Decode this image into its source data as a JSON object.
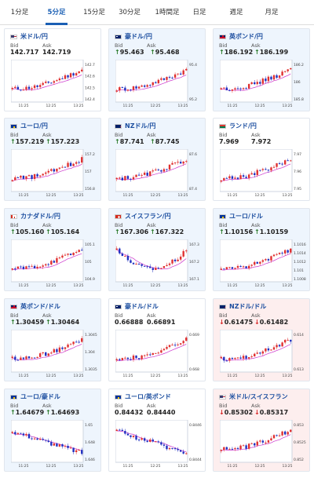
{
  "tabs": [
    "1分足",
    "5分足",
    "15分足",
    "30分足",
    "1時間足",
    "日足",
    "週足",
    "月足"
  ],
  "active_tab": "5分足",
  "labels": {
    "bid": "Bid",
    "ask": "Ask"
  },
  "colors": {
    "up_arrow": "#2a7a2a",
    "down_arrow": "#d62020",
    "candle_up": "#e03030",
    "candle_down": "#2030c0",
    "ma": "#cc33cc",
    "accent": "#1a5fb4"
  },
  "cards": [
    {
      "name": "米ドル/円",
      "flag": "us",
      "dir": "",
      "bid": "142.717",
      "ask": "142.719",
      "chart_data": {
        "type": "candlestick",
        "xticks": [
          "11:25",
          "12:25",
          "13:25"
        ],
        "yticks": [
          "142.7",
          "142.6",
          "142.5",
          "142.4"
        ],
        "trend": "up"
      }
    },
    {
      "name": "豪ドル/円",
      "flag": "au",
      "dir": "up",
      "bid": "95.463",
      "ask": "95.468",
      "chart_data": {
        "type": "candlestick",
        "xticks": [
          "11:25",
          "12:25",
          "13:25"
        ],
        "yticks": [
          "95.4",
          "95.2"
        ],
        "trend": "up"
      }
    },
    {
      "name": "英ポンド/円",
      "flag": "gb",
      "dir": "up",
      "bid": "186.192",
      "ask": "186.199",
      "chart_data": {
        "type": "candlestick",
        "xticks": [
          "11:25",
          "12:25",
          "13:25"
        ],
        "yticks": [
          "186.2",
          "186",
          "185.8"
        ],
        "trend": "up"
      }
    },
    {
      "name": "ユーロ/円",
      "flag": "eu",
      "dir": "up",
      "bid": "157.219",
      "ask": "157.223",
      "chart_data": {
        "type": "candlestick",
        "xticks": [
          "11:25",
          "12:25",
          "13:25"
        ],
        "yticks": [
          "157.2",
          "157",
          "156.8"
        ],
        "trend": "up"
      }
    },
    {
      "name": "NZドル/円",
      "flag": "nz",
      "dir": "up",
      "bid": "87.741",
      "ask": "87.745",
      "chart_data": {
        "type": "candlestick",
        "xticks": [
          "11:25",
          "12:25",
          "13:25"
        ],
        "yticks": [
          "87.6",
          "87.4"
        ],
        "trend": "up"
      }
    },
    {
      "name": "ランド/円",
      "flag": "za",
      "dir": "",
      "bid": "7.969",
      "ask": "7.972",
      "chart_data": {
        "type": "candlestick",
        "xticks": [
          "11:25",
          "12:25",
          "13:25"
        ],
        "yticks": [
          "7.97",
          "7.96",
          "7.95"
        ],
        "trend": "up"
      }
    },
    {
      "name": "カナダドル/円",
      "flag": "ca",
      "dir": "up",
      "bid": "105.160",
      "ask": "105.164",
      "chart_data": {
        "type": "candlestick",
        "xticks": [
          "11:25",
          "12:25",
          "13:25"
        ],
        "yticks": [
          "105.1",
          "105",
          "104.9"
        ],
        "trend": "up"
      }
    },
    {
      "name": "スイスフラン/円",
      "flag": "ch",
      "dir": "up",
      "bid": "167.306",
      "ask": "167.322",
      "chart_data": {
        "type": "candlestick",
        "xticks": [
          "11:25",
          "12:25",
          "13:25"
        ],
        "yticks": [
          "167.3",
          "167.2",
          "167.1"
        ],
        "trend": "vshape"
      }
    },
    {
      "name": "ユーロ/ドル",
      "flag": "eu",
      "dir": "up",
      "bid": "1.10156",
      "ask": "1.10159",
      "chart_data": {
        "type": "candlestick",
        "xticks": [
          "11:25",
          "12:25",
          "13:25"
        ],
        "yticks": [
          "1.1016",
          "1.1014",
          "1.1012",
          "1.101",
          "1.1008"
        ],
        "trend": "up"
      }
    },
    {
      "name": "英ポンド/ドル",
      "flag": "gb",
      "dir": "up",
      "bid": "1.30459",
      "ask": "1.30464",
      "chart_data": {
        "type": "candlestick",
        "xticks": [
          "11:25",
          "12:25",
          "13:25"
        ],
        "yticks": [
          "1.3045",
          "1.304",
          "1.3035"
        ],
        "trend": "up"
      }
    },
    {
      "name": "豪ドル/ドル",
      "flag": "au",
      "dir": "",
      "bid": "0.66888",
      "ask": "0.66891",
      "chart_data": {
        "type": "candlestick",
        "xticks": [
          "11:25",
          "12:25",
          "13:25"
        ],
        "yticks": [
          "0.669",
          "0.668"
        ],
        "trend": "up"
      }
    },
    {
      "name": "NZドル/ドル",
      "flag": "nz",
      "dir": "down",
      "bid": "0.61475",
      "ask": "0.61482",
      "chart_data": {
        "type": "candlestick",
        "xticks": [
          "11:25",
          "12:25",
          "13:25"
        ],
        "yticks": [
          "0.614",
          "0.613"
        ],
        "trend": "up"
      }
    },
    {
      "name": "ユーロ/豪ドル",
      "flag": "eu",
      "dir": "up",
      "bid": "1.64679",
      "ask": "1.64693",
      "chart_data": {
        "type": "candlestick",
        "xticks": [
          "11:25",
          "12:25",
          "13:25"
        ],
        "yticks": [
          "1.65",
          "1.648",
          "1.646"
        ],
        "trend": "down"
      }
    },
    {
      "name": "ユーロ/英ポンド",
      "flag": "eu",
      "dir": "",
      "bid": "0.84432",
      "ask": "0.84440",
      "chart_data": {
        "type": "candlestick",
        "xticks": [
          "11:25",
          "12:25",
          "13:25"
        ],
        "yticks": [
          "0.8446",
          "0.8444"
        ],
        "trend": "down"
      }
    },
    {
      "name": "米ドル/スイスフラン",
      "flag": "us",
      "dir": "down",
      "bid": "0.85302",
      "ask": "0.85317",
      "chart_data": {
        "type": "candlestick",
        "xticks": [
          "11:25",
          "12:25",
          "13:25"
        ],
        "yticks": [
          "0.853",
          "0.8525",
          "0.852"
        ],
        "trend": "up"
      }
    }
  ]
}
